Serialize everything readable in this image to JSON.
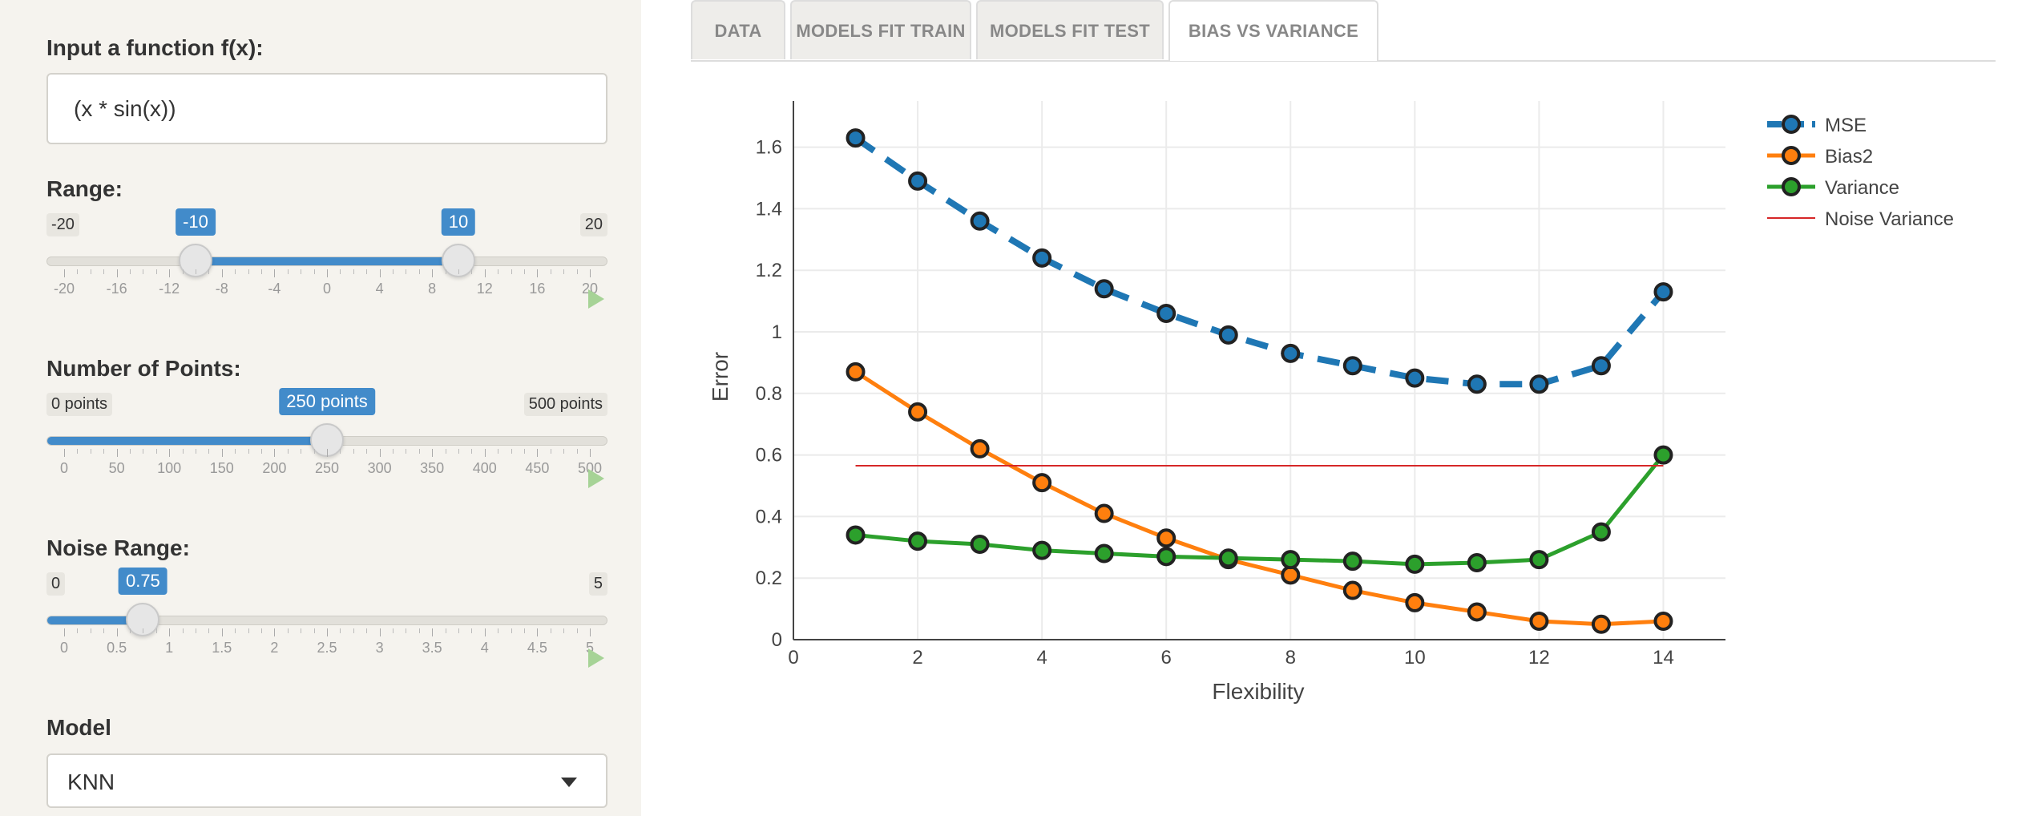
{
  "sidebar": {
    "function": {
      "label": "Input a function f(x):",
      "value": "(x * sin(x))"
    },
    "range": {
      "label": "Range:",
      "min_label": "-20",
      "max_label": "20",
      "from": -10,
      "to": 10,
      "from_label": "-10",
      "to_label": "10",
      "min": -20,
      "max": 20,
      "ticks": [
        "-20",
        "-16",
        "-12",
        "-8",
        "-4",
        "0",
        "4",
        "8",
        "12",
        "16",
        "20"
      ]
    },
    "points": {
      "label": "Number of Points:",
      "min_label": "0 points",
      "max_label": "500 points",
      "value": 250,
      "value_label": "250 points",
      "min": 0,
      "max": 500,
      "ticks": [
        "0",
        "50",
        "100",
        "150",
        "200",
        "250",
        "300",
        "350",
        "400",
        "450",
        "500"
      ]
    },
    "noise": {
      "label": "Noise Range:",
      "min_label": "0",
      "max_label": "5",
      "value": 0.75,
      "value_label": "0.75",
      "min": 0,
      "max": 5,
      "ticks": [
        "0",
        "0.5",
        "1",
        "1.5",
        "2",
        "2.5",
        "3",
        "3.5",
        "4",
        "4.5",
        "5"
      ]
    },
    "model": {
      "label": "Model",
      "value": "KNN"
    }
  },
  "tabs": [
    {
      "label": "DATA",
      "active": false
    },
    {
      "label": "MODELS FIT TRAIN",
      "active": false
    },
    {
      "label": "MODELS FIT TEST",
      "active": false
    },
    {
      "label": "BIAS VS VARIANCE",
      "active": true
    }
  ],
  "chart_data": {
    "type": "line",
    "xlabel": "Flexibility",
    "ylabel": "Error",
    "xlim": [
      0,
      15
    ],
    "ylim": [
      0,
      1.75
    ],
    "xticks": [
      0,
      2,
      4,
      6,
      8,
      10,
      12,
      14
    ],
    "yticks": [
      0,
      0.2,
      0.4,
      0.6,
      0.8,
      1,
      1.2,
      1.4,
      1.6
    ],
    "grid": true,
    "legend_position": "top-right",
    "x": [
      1,
      2,
      3,
      4,
      5,
      6,
      7,
      8,
      9,
      10,
      11,
      12,
      13,
      14
    ],
    "series": [
      {
        "name": "MSE",
        "color": "#1f77b4",
        "dash": true,
        "markers": true,
        "values": [
          1.63,
          1.49,
          1.36,
          1.24,
          1.14,
          1.06,
          0.99,
          0.93,
          0.89,
          0.85,
          0.83,
          0.83,
          0.89,
          1.13
        ]
      },
      {
        "name": "Bias2",
        "color": "#ff7f0e",
        "dash": false,
        "markers": true,
        "values": [
          0.87,
          0.74,
          0.62,
          0.51,
          0.41,
          0.33,
          0.26,
          0.21,
          0.16,
          0.12,
          0.09,
          0.06,
          0.05,
          0.06
        ]
      },
      {
        "name": "Variance",
        "color": "#2ca02c",
        "dash": false,
        "markers": true,
        "values": [
          0.34,
          0.32,
          0.31,
          0.29,
          0.28,
          0.27,
          0.265,
          0.26,
          0.255,
          0.245,
          0.25,
          0.26,
          0.35,
          0.6
        ]
      },
      {
        "name": "Noise Variance",
        "color": "#d62728",
        "dash": false,
        "markers": false,
        "x": [
          1,
          14
        ],
        "values": [
          0.565,
          0.565
        ]
      }
    ]
  }
}
